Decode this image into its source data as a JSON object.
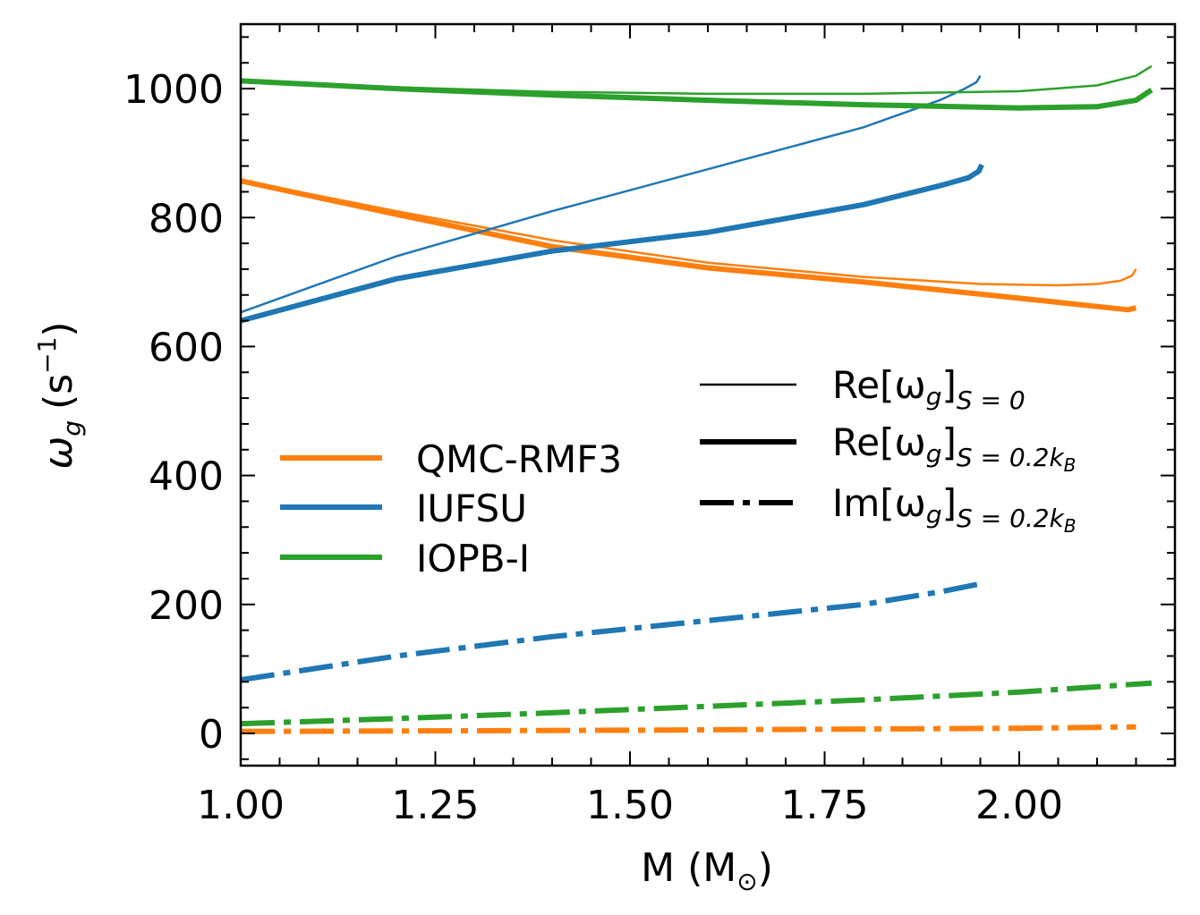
{
  "colors": {
    "QMC-RMF3": "#ff7f0e",
    "IUFSU": "#1f77b4",
    "IOPB-I": "#2ca02c",
    "axis": "#000000"
  },
  "chart_data": {
    "type": "line",
    "xlabel_main": "M (M",
    "xlabel_sun": "⊙",
    "xlabel_close": ")",
    "ylabel_main": "ω",
    "ylabel_sub": "g",
    "ylabel_unit": "(s",
    "ylabel_sup": "−1",
    "ylabel_close": ")",
    "xlim": [
      1.0,
      2.2
    ],
    "ylim": [
      -50,
      1100
    ],
    "xticks": [
      1.0,
      1.25,
      1.5,
      1.75,
      2.0
    ],
    "xtick_labels": [
      "1.00",
      "1.25",
      "1.50",
      "1.75",
      "2.00"
    ],
    "yticks": [
      0,
      200,
      400,
      600,
      800,
      1000
    ],
    "ytick_labels": [
      "0",
      "200",
      "400",
      "600",
      "800",
      "1000"
    ],
    "legend_models": [
      {
        "label": "QMC-RMF3",
        "color_key": "QMC-RMF3"
      },
      {
        "label": "IUFSU",
        "color_key": "IUFSU"
      },
      {
        "label": "IOPB-I",
        "color_key": "IOPB-I"
      }
    ],
    "legend_styles": [
      {
        "base": "Re[ω",
        "g": "g",
        "close": "]",
        "sub": "S = 0",
        "style": "thin"
      },
      {
        "base": "Re[ω",
        "g": "g",
        "close": "]",
        "sub": "S = 0.2k",
        "subB": "B",
        "style": "thick"
      },
      {
        "base": "Im[ω",
        "g": "g",
        "close": "]",
        "sub": "S = 0.2k",
        "subB": "B",
        "style": "dashdot"
      }
    ],
    "series": [
      {
        "name": "QMC-RMF3 Re[ωg] S=0",
        "model": "QMC-RMF3",
        "style": "thin",
        "x": [
          1.0,
          1.2,
          1.4,
          1.6,
          1.8,
          1.95,
          2.05,
          2.1,
          2.13,
          2.145,
          2.15
        ],
        "y": [
          858,
          810,
          765,
          730,
          708,
          697,
          695,
          697,
          702,
          710,
          720
        ]
      },
      {
        "name": "QMC-RMF3 Re[ωg] S=0.2kB",
        "model": "QMC-RMF3",
        "style": "thick",
        "x": [
          1.0,
          1.2,
          1.4,
          1.6,
          1.8,
          2.0,
          2.1,
          2.14,
          2.15
        ],
        "y": [
          857,
          805,
          755,
          722,
          700,
          675,
          662,
          657,
          660
        ]
      },
      {
        "name": "QMC-RMF3 Im[ωg] S=0.2kB",
        "model": "QMC-RMF3",
        "style": "dashdot",
        "x": [
          1.0,
          1.5,
          2.0,
          2.15
        ],
        "y": [
          3,
          5,
          8,
          10
        ]
      },
      {
        "name": "IUFSU Re[ωg] S=0",
        "model": "IUFSU",
        "style": "thin",
        "x": [
          1.0,
          1.2,
          1.4,
          1.6,
          1.8,
          1.9,
          1.93,
          1.945,
          1.95
        ],
        "y": [
          653,
          740,
          810,
          875,
          940,
          983,
          1000,
          1010,
          1020
        ]
      },
      {
        "name": "IUFSU Re[ωg] S=0.2kB",
        "model": "IUFSU",
        "style": "thick",
        "x": [
          1.0,
          1.2,
          1.4,
          1.6,
          1.8,
          1.9,
          1.935,
          1.948,
          1.952
        ],
        "y": [
          640,
          705,
          748,
          777,
          820,
          850,
          862,
          872,
          882
        ]
      },
      {
        "name": "IUFSU Im[ωg] S=0.2kB",
        "model": "IUFSU",
        "style": "dashdot",
        "x": [
          1.0,
          1.2,
          1.4,
          1.6,
          1.8,
          1.9,
          1.95
        ],
        "y": [
          83,
          120,
          150,
          175,
          200,
          220,
          232
        ]
      },
      {
        "name": "IOPB-I Re[ωg] S=0",
        "model": "IOPB-I",
        "style": "thin",
        "x": [
          1.0,
          1.2,
          1.4,
          1.6,
          1.8,
          2.0,
          2.1,
          2.15,
          2.17
        ],
        "y": [
          1012,
          1002,
          995,
          992,
          992,
          996,
          1005,
          1020,
          1035
        ]
      },
      {
        "name": "IOPB-I Re[ωg] S=0.2kB",
        "model": "IOPB-I",
        "style": "thick",
        "x": [
          1.0,
          1.2,
          1.4,
          1.6,
          1.8,
          2.0,
          2.1,
          2.15,
          2.17
        ],
        "y": [
          1012,
          1000,
          990,
          982,
          975,
          970,
          972,
          982,
          998
        ]
      },
      {
        "name": "IOPB-I Im[ωg] S=0.2kB",
        "model": "IOPB-I",
        "style": "dashdot",
        "x": [
          1.0,
          1.2,
          1.4,
          1.6,
          1.8,
          2.0,
          2.17
        ],
        "y": [
          15,
          23,
          32,
          42,
          52,
          64,
          78
        ]
      }
    ]
  }
}
